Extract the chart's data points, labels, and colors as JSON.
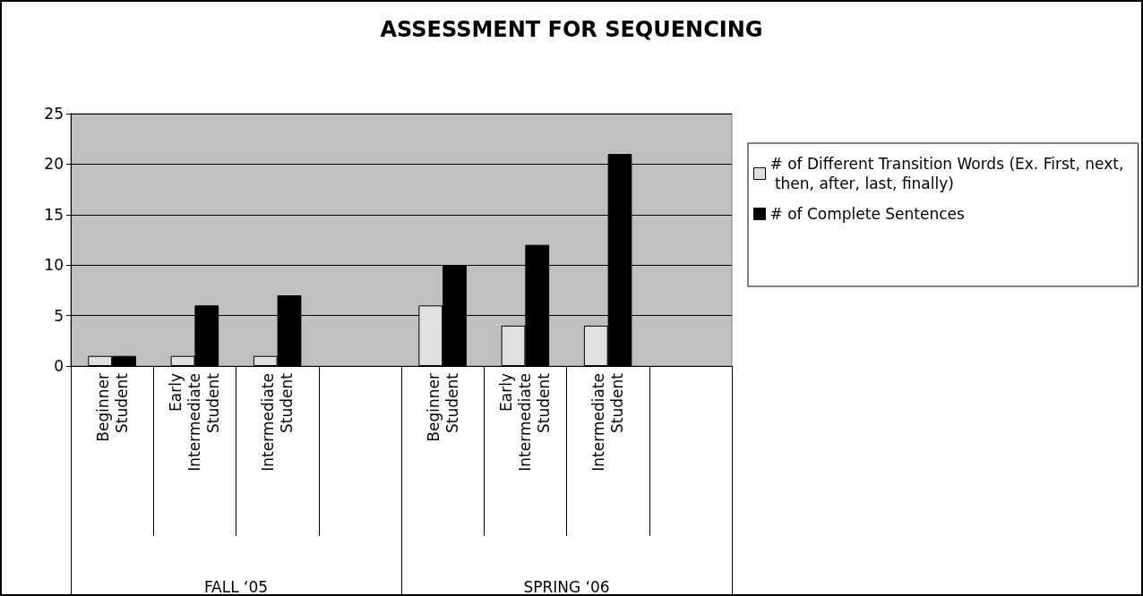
{
  "chart_data": {
    "type": "bar",
    "title": "ASSESSMENT FOR SEQUENCING",
    "categories": [
      "Beginner Student",
      "Early Intermediate Student",
      "Intermediate Student",
      null,
      "Beginner Student",
      "Early Intermediate Student",
      "Intermediate Student",
      null
    ],
    "series": [
      {
        "name": "# of Different Transition Words (Ex. First, next, then, after, last, finally)",
        "color": "#e0e0e0",
        "values": [
          1,
          1,
          1,
          null,
          6,
          4,
          4,
          null
        ]
      },
      {
        "name": "# of Complete Sentences",
        "color": "#000000",
        "values": [
          1,
          6,
          7,
          null,
          10,
          12,
          21,
          null
        ]
      }
    ],
    "annotations": [
      "FALL ‘05",
      "SPRING ‘06"
    ],
    "ylim": [
      0,
      25
    ],
    "yticks": [
      0,
      5,
      10,
      15,
      20,
      25
    ],
    "grid": "y",
    "legend": "right"
  }
}
